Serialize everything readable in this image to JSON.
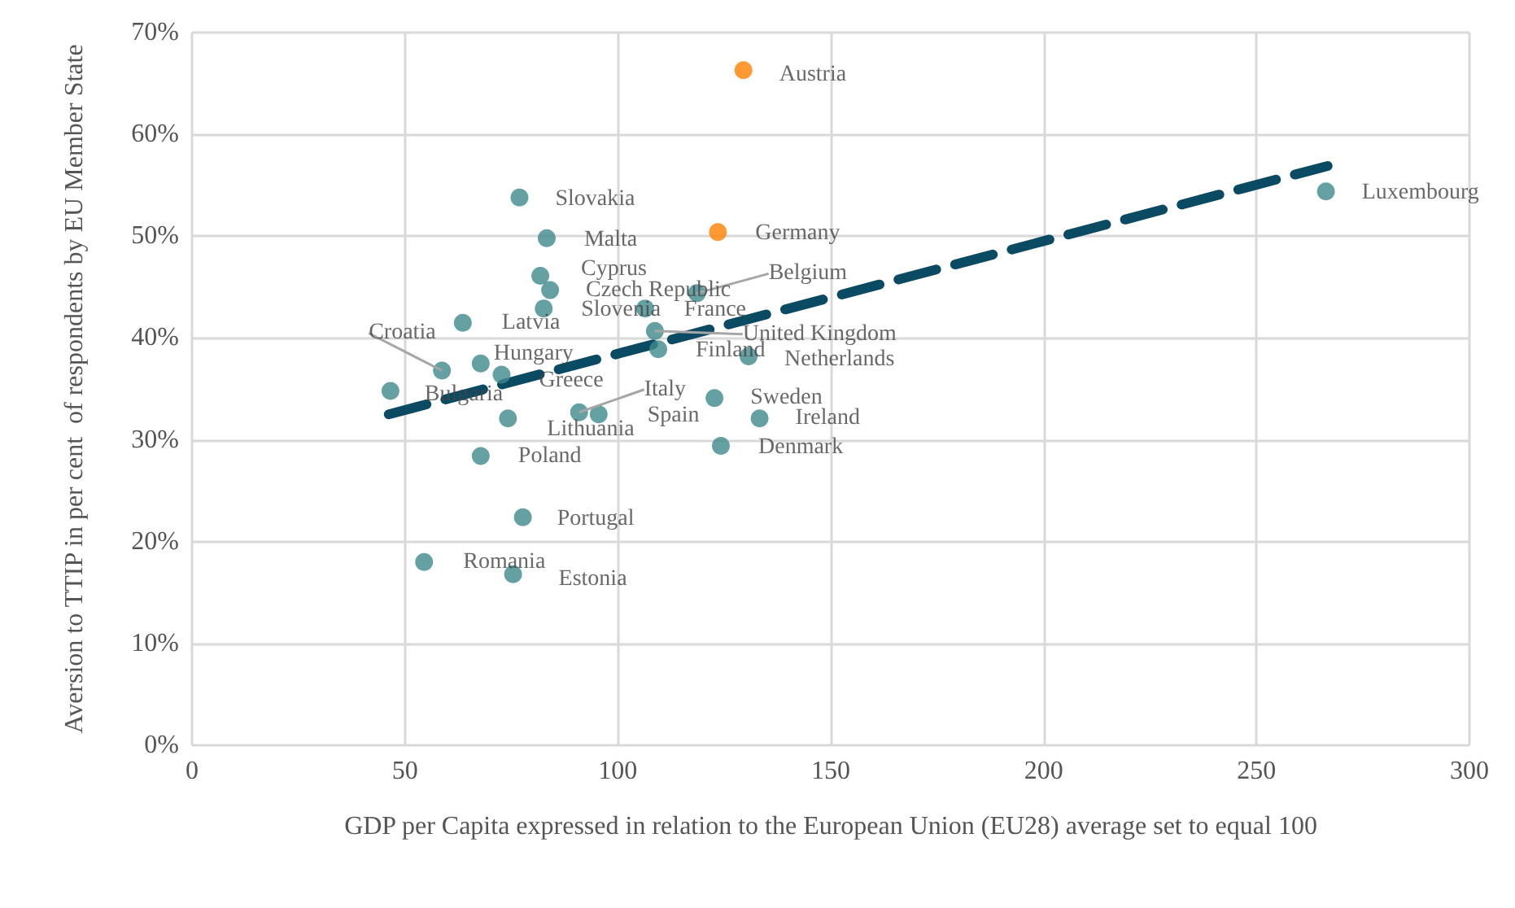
{
  "chart_data": {
    "type": "scatter",
    "xlabel": "GDP per Capita expressed in relation to the European Union (EU28) average set to equal 100",
    "ylabel": "Aversion to TTIP in per cent  of respondents by EU Member State",
    "xlim": [
      0,
      300
    ],
    "xticks": [
      0,
      50,
      100,
      150,
      200,
      250,
      300
    ],
    "ylim": [
      0,
      70
    ],
    "yticks": [
      {
        "value": 0,
        "label": "0%"
      },
      {
        "value": 10,
        "label": "10%"
      },
      {
        "value": 20,
        "label": "20%"
      },
      {
        "value": 30,
        "label": "30%"
      },
      {
        "value": 40,
        "label": "40%"
      },
      {
        "value": 50,
        "label": "50%"
      },
      {
        "value": 60,
        "label": "60%"
      },
      {
        "value": 70,
        "label": "70%"
      }
    ],
    "grid": true,
    "series": [
      {
        "marker": "circle",
        "x": [
          129.5,
          123.5,
          266.3,
          76.9,
          83.3,
          81.8,
          84.1,
          82.6,
          63.6,
          106.4,
          118.6,
          108.7,
          109.5,
          130.7,
          58.7,
          67.8,
          72.7,
          46.6,
          74.2,
          90.9,
          95.5,
          122.7,
          133.3,
          124.2,
          67.8,
          77.7,
          54.5,
          75.4
        ],
        "values": [
          66.3,
          50.4,
          54.4,
          53.8,
          49.8,
          46.1,
          44.7,
          42.9,
          41.5,
          42.9,
          44.4,
          40.7,
          38.9,
          38.2,
          36.8,
          37.5,
          36.4,
          34.8,
          32.1,
          32.7,
          32.5,
          34.1,
          32.1,
          29.4,
          28.4,
          22.4,
          18.0,
          16.8
        ],
        "colors": [
          "#ff8000",
          "#ff8000",
          "#3f8a8c",
          "#3f8a8c",
          "#3f8a8c",
          "#3f8a8c",
          "#3f8a8c",
          "#3f8a8c",
          "#3f8a8c",
          "#3f8a8c",
          "#3f8a8c",
          "#3f8a8c",
          "#3f8a8c",
          "#3f8a8c",
          "#3f8a8c",
          "#3f8a8c",
          "#3f8a8c",
          "#3f8a8c",
          "#3f8a8c",
          "#3f8a8c",
          "#3f8a8c",
          "#3f8a8c",
          "#3f8a8c",
          "#3f8a8c",
          "#3f8a8c",
          "#3f8a8c",
          "#3f8a8c",
          "#3f8a8c"
        ]
      },
      {
        "type": "line",
        "marker": "none",
        "line_style": "dashed",
        "color": "#0b4a63",
        "x": [
          46.2,
          266.7
        ],
        "values": [
          32.5,
          56.9
        ]
      }
    ],
    "annotations": [
      {
        "text": "Austria",
        "x": 129.5,
        "y": 66.3
      },
      {
        "text": "Germany",
        "x": 123.5,
        "y": 50.4
      },
      {
        "text": "Luxembourg",
        "x": 266.3,
        "y": 54.4
      },
      {
        "text": "Slovakia",
        "x": 76.9,
        "y": 53.8
      },
      {
        "text": "Malta",
        "x": 83.3,
        "y": 49.8
      },
      {
        "text": "Cyprus",
        "x": 81.8,
        "y": 46.1
      },
      {
        "text": "Czech Republic",
        "x": 84.1,
        "y": 44.7
      },
      {
        "text": "Slovenia",
        "x": 82.6,
        "y": 42.9
      },
      {
        "text": "Latvia",
        "x": 63.6,
        "y": 41.5
      },
      {
        "text": "France",
        "x": 106.4,
        "y": 42.9
      },
      {
        "text": "Belgium",
        "x": 118.6,
        "y": 44.4
      },
      {
        "text": "United Kingdom",
        "x": 108.7,
        "y": 40.7
      },
      {
        "text": "Finland",
        "x": 109.5,
        "y": 38.9
      },
      {
        "text": "Netherlands",
        "x": 130.7,
        "y": 38.2
      },
      {
        "text": "Croatia",
        "x": 58.7,
        "y": 36.8
      },
      {
        "text": "Hungary",
        "x": 67.8,
        "y": 37.5
      },
      {
        "text": "Greece",
        "x": 72.7,
        "y": 36.4
      },
      {
        "text": "Bulgaria",
        "x": 46.6,
        "y": 34.8
      },
      {
        "text": "Lithuania",
        "x": 74.2,
        "y": 32.1
      },
      {
        "text": "Italy",
        "x": 90.9,
        "y": 32.7
      },
      {
        "text": "Spain",
        "x": 95.5,
        "y": 32.5
      },
      {
        "text": "Sweden",
        "x": 122.7,
        "y": 34.1
      },
      {
        "text": "Ireland",
        "x": 133.3,
        "y": 32.1
      },
      {
        "text": "Denmark",
        "x": 124.2,
        "y": 29.4
      },
      {
        "text": "Poland",
        "x": 67.8,
        "y": 28.4
      },
      {
        "text": "Portugal",
        "x": 77.7,
        "y": 22.4
      },
      {
        "text": "Romania",
        "x": 54.5,
        "y": 18.0
      },
      {
        "text": "Estonia",
        "x": 75.4,
        "y": 16.8
      }
    ]
  }
}
